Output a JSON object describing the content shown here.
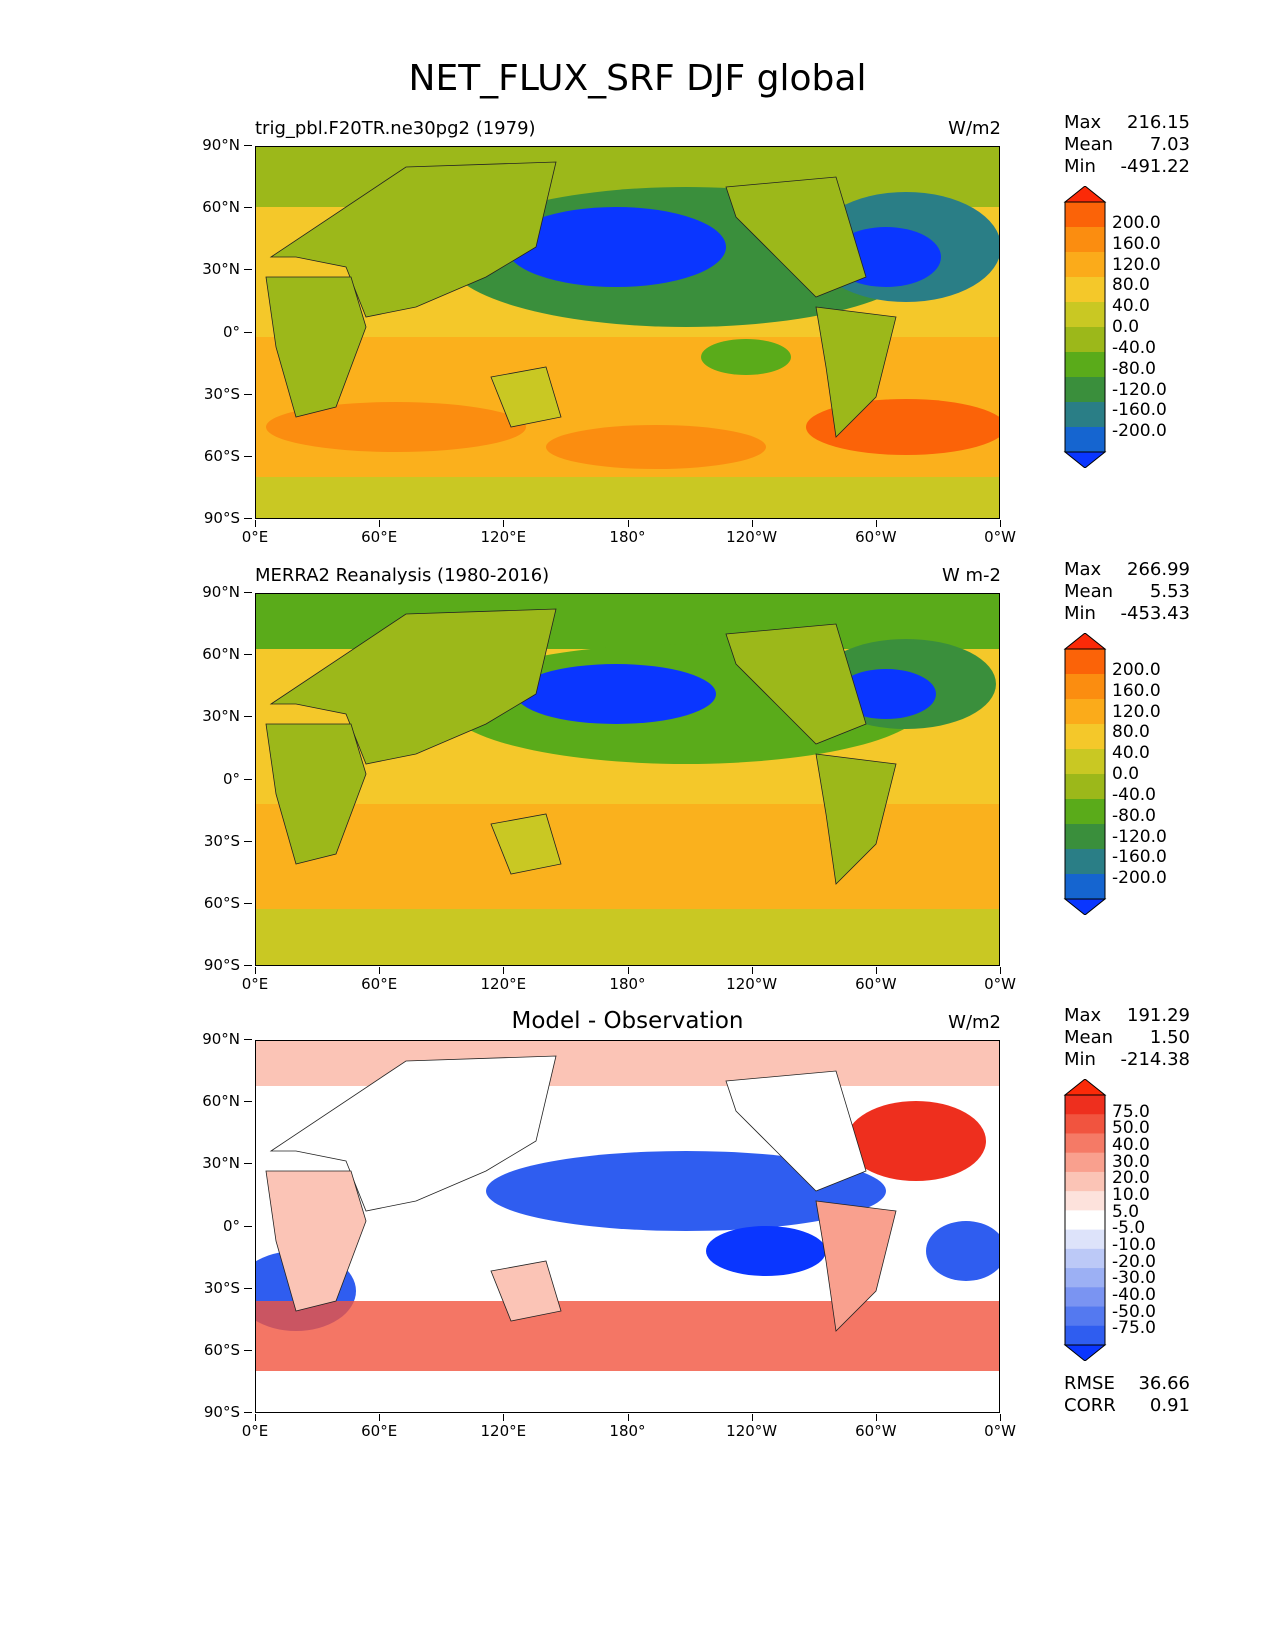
{
  "figure_title": "NET_FLUX_SRF DJF global",
  "lat_ticks": [
    "90°N",
    "60°N",
    "30°N",
    "0°",
    "30°S",
    "60°S",
    "90°S"
  ],
  "lon_ticks": [
    "0°E",
    "60°E",
    "120°E",
    "180°",
    "120°W",
    "60°W",
    "0°W"
  ],
  "panels": [
    {
      "title": "trig_pbl.F20TR.ne30pg2 (1979)",
      "units": "W/m2",
      "stats": {
        "max_label": "Max",
        "max": "216.15",
        "mean_label": "Mean",
        "mean": "7.03",
        "min_label": "Min",
        "min": "-491.22"
      },
      "colorbar_labels": [
        "200.0",
        "160.0",
        "120.0",
        "80.0",
        "40.0",
        "0.0",
        "-40.0",
        "-80.0",
        "-120.0",
        "-160.0",
        "-200.0"
      ]
    },
    {
      "title": "MERRA2 Reanalysis (1980-2016)",
      "units": "W m-2",
      "stats": {
        "max_label": "Max",
        "max": "266.99",
        "mean_label": "Mean",
        "mean": "5.53",
        "min_label": "Min",
        "min": "-453.43"
      },
      "colorbar_labels": [
        "200.0",
        "160.0",
        "120.0",
        "80.0",
        "40.0",
        "0.0",
        "-40.0",
        "-80.0",
        "-120.0",
        "-160.0",
        "-200.0"
      ]
    },
    {
      "title": "Model - Observation",
      "units": "W/m2",
      "stats": {
        "max_label": "Max",
        "max": "191.29",
        "mean_label": "Mean",
        "mean": "1.50",
        "min_label": "Min",
        "min": "-214.38"
      },
      "colorbar_labels": [
        "75.0",
        "50.0",
        "40.0",
        "30.0",
        "20.0",
        "10.0",
        "5.0",
        "-5.0",
        "-10.0",
        "-20.0",
        "-30.0",
        "-40.0",
        "-50.0",
        "-75.0"
      ],
      "metrics": {
        "rmse_label": "RMSE",
        "rmse": "36.66",
        "corr_label": "CORR",
        "corr": "0.91"
      }
    }
  ],
  "colors": {
    "field_scale": [
      "#0a36ff",
      "#1565d0",
      "#2a7e86",
      "#3a8f3c",
      "#5aab1a",
      "#9cb81a",
      "#c9c823",
      "#f4c82a",
      "#fbab1a",
      "#fb8d10",
      "#fb6308",
      "#fb2a08"
    ],
    "diff_scale": [
      "#0a36ff",
      "#2f5df0",
      "#5479f0",
      "#7a94f2",
      "#9cb0f4",
      "#bcc9f7",
      "#dde3fa",
      "#ffffff",
      "#fde2dc",
      "#fbc4b6",
      "#f9a08e",
      "#f57a66",
      "#f1543f",
      "#ee2f1e",
      "#fb2a08"
    ]
  }
}
